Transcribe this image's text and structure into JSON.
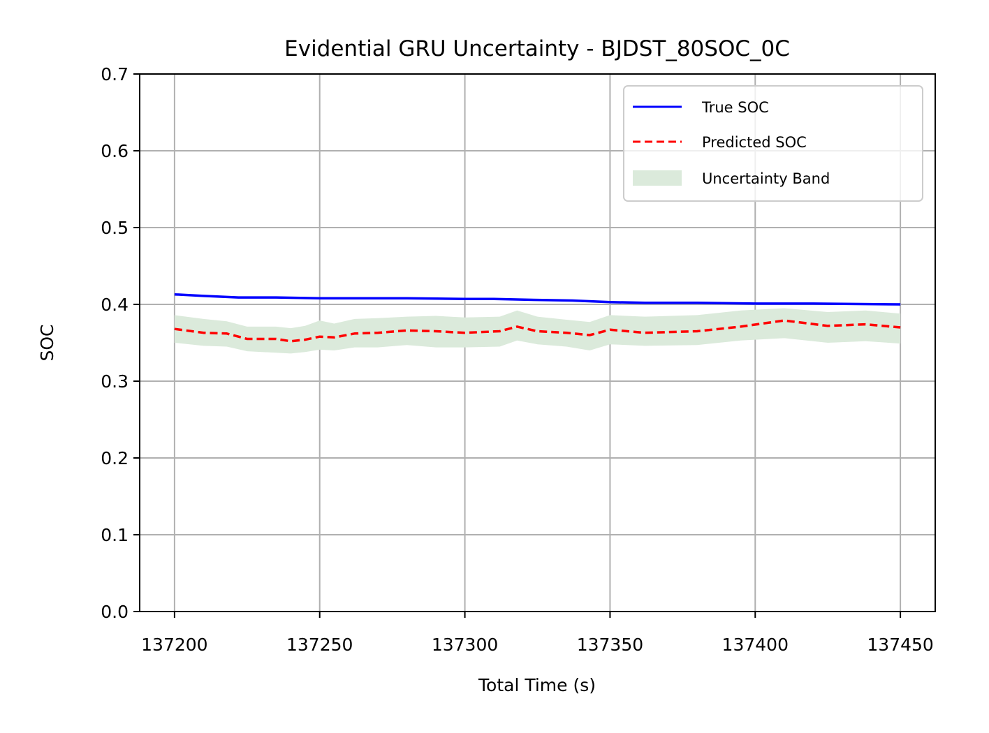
{
  "chart_data": {
    "type": "line",
    "title": "Evidential GRU Uncertainty - BJDST_80SOC_0C",
    "xlabel": "Total Time (s)",
    "ylabel": "SOC",
    "xlim": [
      137188,
      137462
    ],
    "ylim": [
      0.0,
      0.7
    ],
    "grid": true,
    "legend_position": "top-right",
    "x_ticks": [
      137200,
      137250,
      137300,
      137350,
      137400,
      137450
    ],
    "x_tick_labels": [
      "137200",
      "137250",
      "137300",
      "137350",
      "137400",
      "137450"
    ],
    "y_ticks": [
      0.0,
      0.1,
      0.2,
      0.3,
      0.4,
      0.5,
      0.6,
      0.7
    ],
    "y_tick_labels": [
      "0.0",
      "0.1",
      "0.2",
      "0.3",
      "0.4",
      "0.5",
      "0.6",
      "0.7"
    ],
    "series": [
      {
        "name": "True SOC",
        "style": "solid",
        "color": "#0000ff",
        "x": [
          137200,
          137210,
          137222,
          137235,
          137250,
          137262,
          137280,
          137300,
          137310,
          137322,
          137337,
          137350,
          137362,
          137380,
          137400,
          137420,
          137450
        ],
        "y": [
          0.413,
          0.411,
          0.409,
          0.409,
          0.408,
          0.408,
          0.408,
          0.407,
          0.407,
          0.406,
          0.405,
          0.403,
          0.402,
          0.402,
          0.401,
          0.401,
          0.4
        ]
      },
      {
        "name": "Predicted SOC",
        "style": "dashed",
        "color": "#ff0000",
        "x": [
          137200,
          137210,
          137218,
          137225,
          137235,
          137240,
          137245,
          137250,
          137255,
          137262,
          137270,
          137280,
          137290,
          137300,
          137312,
          137318,
          137325,
          137335,
          137343,
          137350,
          137362,
          137380,
          137395,
          137410,
          137425,
          137438,
          137450
        ],
        "y": [
          0.368,
          0.363,
          0.362,
          0.355,
          0.355,
          0.352,
          0.354,
          0.358,
          0.357,
          0.362,
          0.363,
          0.366,
          0.365,
          0.363,
          0.365,
          0.371,
          0.365,
          0.363,
          0.36,
          0.367,
          0.363,
          0.365,
          0.371,
          0.379,
          0.372,
          0.374,
          0.37
        ]
      },
      {
        "name": "Uncertainty Band",
        "style": "fill",
        "color": "#dbeadb",
        "x": [
          137200,
          137210,
          137218,
          137225,
          137235,
          137240,
          137245,
          137250,
          137255,
          137262,
          137270,
          137280,
          137290,
          137300,
          137312,
          137318,
          137325,
          137335,
          137343,
          137350,
          137362,
          137380,
          137395,
          137410,
          137425,
          137438,
          137450
        ],
        "upper": [
          0.386,
          0.381,
          0.378,
          0.371,
          0.371,
          0.369,
          0.372,
          0.379,
          0.375,
          0.381,
          0.382,
          0.384,
          0.385,
          0.383,
          0.384,
          0.392,
          0.384,
          0.38,
          0.377,
          0.386,
          0.384,
          0.386,
          0.392,
          0.395,
          0.39,
          0.392,
          0.388
        ],
        "lower": [
          0.35,
          0.346,
          0.345,
          0.339,
          0.337,
          0.336,
          0.338,
          0.341,
          0.34,
          0.344,
          0.344,
          0.347,
          0.344,
          0.344,
          0.345,
          0.353,
          0.348,
          0.345,
          0.34,
          0.348,
          0.346,
          0.347,
          0.353,
          0.356,
          0.35,
          0.352,
          0.349
        ]
      }
    ]
  }
}
